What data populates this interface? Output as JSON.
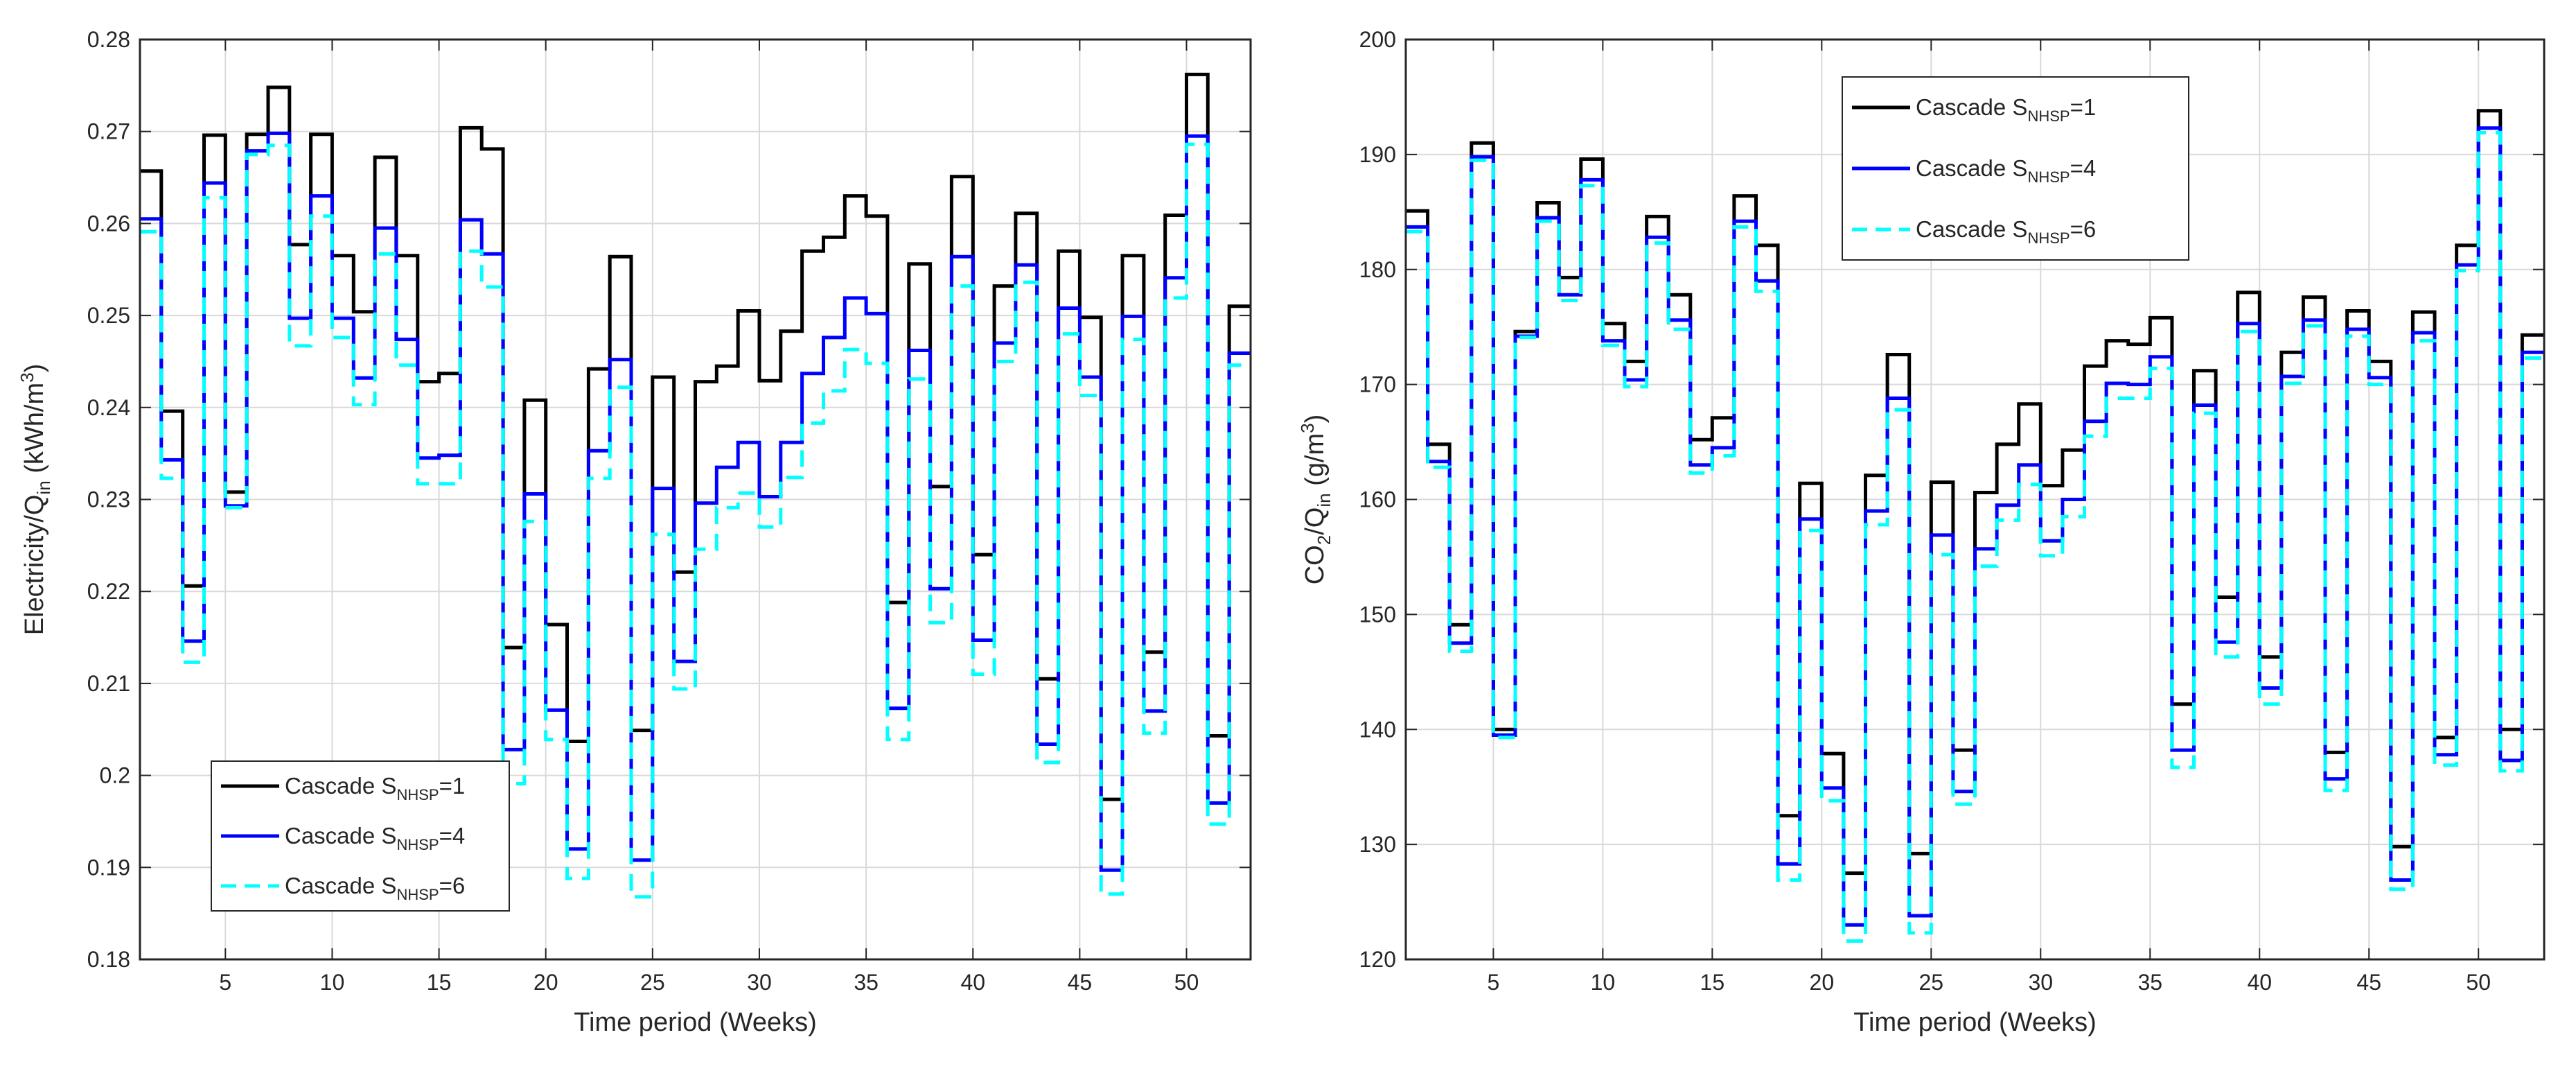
{
  "figure": {
    "colors": {
      "s1": "#000000",
      "s4": "#0000ff",
      "s6": "#00ffff",
      "grid": "#d9d9d9",
      "axis": "#262626"
    }
  },
  "chart_data": [
    {
      "type": "line",
      "step": true,
      "title": "",
      "xlabel": "Time period (Weeks)",
      "ylabel_main": "Electricity/Q",
      "ylabel_sub": "in",
      "ylabel_unit_pre": " (kWh/m",
      "ylabel_unit_sup": "3",
      "ylabel_unit_post": ")",
      "xlim": [
        1,
        53
      ],
      "ylim": [
        0.18,
        0.28
      ],
      "xticks": [
        5,
        10,
        15,
        20,
        25,
        30,
        35,
        40,
        45,
        50
      ],
      "yticks": [
        0.18,
        0.19,
        0.2,
        0.21,
        0.22,
        0.23,
        0.24,
        0.25,
        0.26,
        0.27,
        0.28
      ],
      "ytick_labels": [
        "0.18",
        "0.19",
        "0.2",
        "0.21",
        "0.22",
        "0.23",
        "0.24",
        "0.25",
        "0.26",
        "0.27",
        "0.28"
      ],
      "grid": true,
      "legend_position": "bottom-left",
      "x": [
        1,
        2,
        3,
        4,
        5,
        6,
        7,
        8,
        9,
        10,
        11,
        12,
        13,
        14,
        15,
        16,
        17,
        18,
        19,
        20,
        21,
        22,
        23,
        24,
        25,
        26,
        27,
        28,
        29,
        30,
        31,
        32,
        33,
        34,
        35,
        36,
        37,
        38,
        39,
        40,
        41,
        42,
        43,
        44,
        45,
        46,
        47,
        48,
        49,
        50,
        51,
        52,
        53
      ],
      "series": [
        {
          "key": "s1",
          "prefix": "Cascade S",
          "sub": "NHSP",
          "suffix": "=1",
          "values": [
            0.2657,
            0.2396,
            0.2206,
            0.2696,
            0.2308,
            0.2697,
            0.2748,
            0.2577,
            0.2697,
            0.2565,
            0.2504,
            0.2672,
            0.2565,
            0.2428,
            0.2437,
            0.2704,
            0.2681,
            0.2139,
            0.2408,
            0.2164,
            0.2037,
            0.2442,
            0.2564,
            0.2049,
            0.2433,
            0.2221,
            0.2428,
            0.2445,
            0.2505,
            0.2429,
            0.2483,
            0.257,
            0.2585,
            0.263,
            0.2608,
            0.2188,
            0.2556,
            0.2314,
            0.2651,
            0.224,
            0.2532,
            0.2611,
            0.2105,
            0.257,
            0.2498,
            0.1974,
            0.2565,
            0.2134,
            0.2609,
            0.2762,
            0.2043,
            0.251,
            0.251
          ]
        },
        {
          "key": "s4",
          "prefix": "Cascade S",
          "sub": "NHSP",
          "suffix": "=4",
          "values": [
            0.2605,
            0.2343,
            0.2146,
            0.2644,
            0.2293,
            0.2679,
            0.2698,
            0.2497,
            0.263,
            0.2497,
            0.2432,
            0.2595,
            0.2474,
            0.2345,
            0.2348,
            0.2604,
            0.2567,
            0.2028,
            0.2306,
            0.2071,
            0.192,
            0.2353,
            0.2452,
            0.1908,
            0.2312,
            0.2124,
            0.2296,
            0.2335,
            0.2362,
            0.2303,
            0.2362,
            0.2437,
            0.2476,
            0.2519,
            0.2502,
            0.2073,
            0.2462,
            0.2203,
            0.2564,
            0.2147,
            0.247,
            0.2555,
            0.2034,
            0.2508,
            0.2433,
            0.1897,
            0.2499,
            0.207,
            0.2541,
            0.2695,
            0.197,
            0.2459,
            0.2459
          ]
        },
        {
          "key": "s6",
          "prefix": "Cascade S",
          "sub": "NHSP",
          "suffix": "=6",
          "values": [
            0.2591,
            0.2323,
            0.2123,
            0.2628,
            0.2291,
            0.2675,
            0.2685,
            0.2467,
            0.2608,
            0.2476,
            0.2403,
            0.2567,
            0.2446,
            0.2317,
            0.2317,
            0.257,
            0.2531,
            0.1991,
            0.2276,
            0.2039,
            0.1888,
            0.2323,
            0.2422,
            0.1868,
            0.2262,
            0.2094,
            0.2246,
            0.2291,
            0.2307,
            0.227,
            0.2324,
            0.2383,
            0.2418,
            0.2463,
            0.2448,
            0.2039,
            0.2431,
            0.2166,
            0.2532,
            0.211,
            0.245,
            0.2536,
            0.2014,
            0.248,
            0.2413,
            0.1871,
            0.2474,
            0.2046,
            0.2519,
            0.2686,
            0.1947,
            0.2446,
            0.2446
          ]
        }
      ]
    },
    {
      "type": "line",
      "step": true,
      "title": "",
      "xlabel": "Time period (Weeks)",
      "ylabel_main": "CO",
      "ylabel_sub2": "2",
      "ylabel_mid": "/Q",
      "ylabel_sub": "in",
      "ylabel_unit_pre": " (g/m",
      "ylabel_unit_sup": "3",
      "ylabel_unit_post": ")",
      "xlim": [
        1,
        53
      ],
      "ylim": [
        120,
        200
      ],
      "xticks": [
        5,
        10,
        15,
        20,
        25,
        30,
        35,
        40,
        45,
        50
      ],
      "yticks": [
        120,
        130,
        140,
        150,
        160,
        170,
        180,
        190,
        200
      ],
      "ytick_labels": [
        "120",
        "130",
        "140",
        "150",
        "160",
        "170",
        "180",
        "190",
        "200"
      ],
      "grid": true,
      "legend_position": "top-center",
      "x": [
        1,
        2,
        3,
        4,
        5,
        6,
        7,
        8,
        9,
        10,
        11,
        12,
        13,
        14,
        15,
        16,
        17,
        18,
        19,
        20,
        21,
        22,
        23,
        24,
        25,
        26,
        27,
        28,
        29,
        30,
        31,
        32,
        33,
        34,
        35,
        36,
        37,
        38,
        39,
        40,
        41,
        42,
        43,
        44,
        45,
        46,
        47,
        48,
        49,
        50,
        51,
        52,
        53
      ],
      "series": [
        {
          "key": "s1",
          "prefix": "Cascade S",
          "sub": "NHSP",
          "suffix": "=1",
          "values": [
            185.1,
            164.8,
            149.1,
            191.0,
            140.0,
            174.6,
            185.8,
            179.3,
            189.6,
            175.3,
            172.0,
            184.6,
            177.8,
            165.2,
            167.1,
            186.4,
            182.1,
            132.5,
            161.4,
            137.9,
            127.5,
            162.1,
            172.6,
            129.2,
            161.5,
            138.2,
            160.6,
            164.8,
            168.3,
            161.2,
            164.3,
            171.6,
            173.8,
            173.5,
            175.8,
            142.2,
            171.2,
            151.5,
            178.0,
            146.3,
            172.8,
            177.6,
            138.0,
            176.4,
            172.0,
            129.8,
            176.3,
            139.3,
            182.1,
            193.8,
            140.0,
            174.3,
            174.3
          ]
        },
        {
          "key": "s4",
          "prefix": "Cascade S",
          "sub": "NHSP",
          "suffix": "=4",
          "values": [
            183.7,
            163.3,
            147.5,
            189.8,
            139.5,
            174.2,
            184.5,
            177.8,
            187.8,
            173.8,
            170.4,
            182.8,
            175.6,
            163.0,
            164.5,
            184.2,
            179.0,
            128.3,
            158.3,
            134.9,
            123.0,
            159.0,
            168.8,
            123.8,
            156.9,
            134.6,
            155.7,
            159.5,
            163.0,
            156.4,
            160.0,
            166.8,
            170.1,
            170.0,
            172.4,
            138.2,
            168.2,
            147.6,
            175.3,
            143.6,
            170.7,
            175.6,
            135.7,
            174.8,
            170.6,
            126.9,
            174.5,
            137.8,
            180.4,
            192.3,
            137.3,
            172.8,
            172.8
          ]
        },
        {
          "key": "s6",
          "prefix": "Cascade S",
          "sub": "NHSP",
          "suffix": "=6",
          "values": [
            183.3,
            162.8,
            146.8,
            189.5,
            139.3,
            174.1,
            184.2,
            177.3,
            187.3,
            173.4,
            169.8,
            182.3,
            174.8,
            162.3,
            163.8,
            183.7,
            178.1,
            126.9,
            157.3,
            133.8,
            121.6,
            157.8,
            167.8,
            122.3,
            155.2,
            133.5,
            154.2,
            158.2,
            161.3,
            155.1,
            158.5,
            165.5,
            168.8,
            168.8,
            171.4,
            136.7,
            167.5,
            146.3,
            174.6,
            142.2,
            170.1,
            175.1,
            134.7,
            174.2,
            170.0,
            126.1,
            173.8,
            136.9,
            179.9,
            191.9,
            136.4,
            172.3,
            172.3
          ]
        }
      ]
    }
  ]
}
